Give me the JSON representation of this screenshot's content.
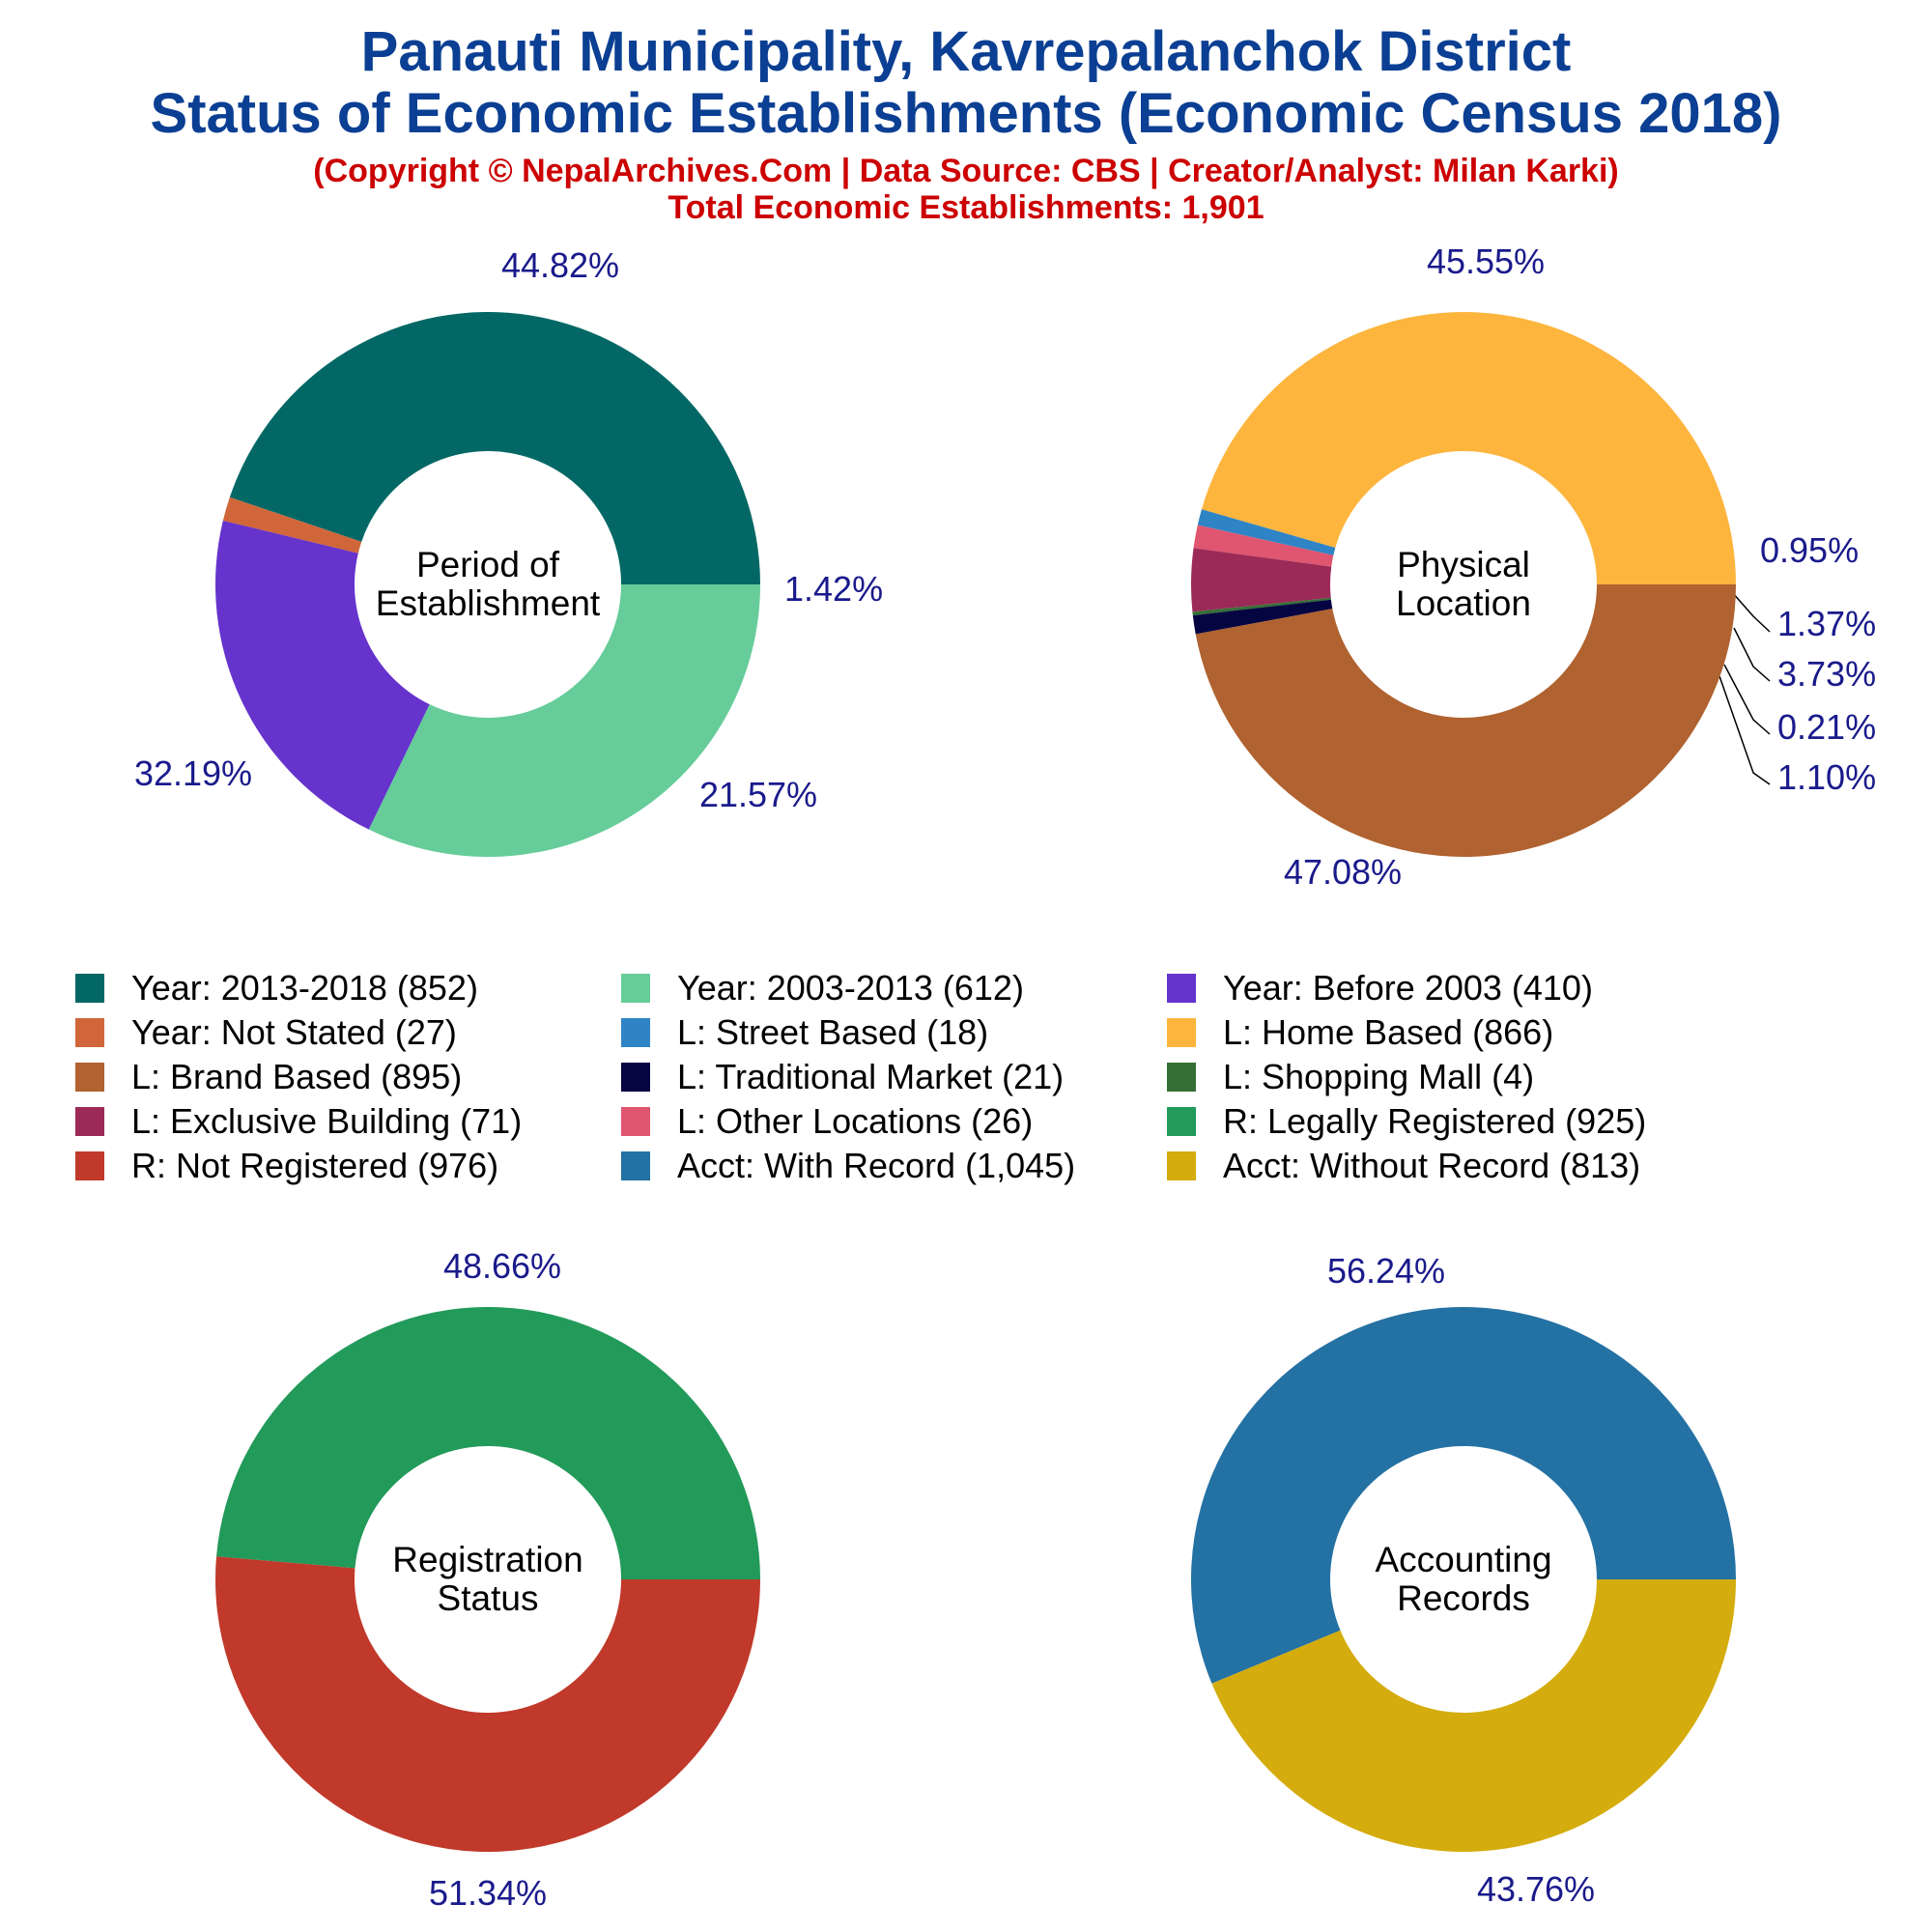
{
  "header": {
    "title_line1": "Panauti Municipality, Kavrepalanchok District",
    "title_line2": "Status of Economic Establishments (Economic Census 2018)",
    "subtitle_line1": "(Copyright © NepalArchives.Com | Data Source: CBS | Creator/Analyst: Milan Karki)",
    "subtitle_line2": "Total Economic Establishments: 1,901"
  },
  "chart_data": [
    {
      "type": "pie",
      "center_label": [
        "Period of",
        "Establishment"
      ],
      "slices": [
        {
          "label": "Year: 2013-2018",
          "value": 852,
          "percent": "44.82%",
          "color": "#036865"
        },
        {
          "label": "Year: Not Stated",
          "value": 27,
          "percent": "1.42%",
          "color": "#d1663a"
        },
        {
          "label": "Year: Before 2003",
          "value": 410,
          "percent": "21.57%",
          "color": "#6633cc"
        },
        {
          "label": "Year: 2003-2013",
          "value": 612,
          "percent": "32.19%",
          "color": "#66cc99"
        }
      ]
    },
    {
      "type": "pie",
      "center_label": [
        "Physical",
        "Location"
      ],
      "slices": [
        {
          "label": "L: Home Based",
          "value": 866,
          "percent": "45.55%",
          "color": "#fdb53e"
        },
        {
          "label": "L: Street Based",
          "value": 18,
          "percent": "0.95%",
          "color": "#2f84c6"
        },
        {
          "label": "L: Other Locations",
          "value": 26,
          "percent": "1.37%",
          "color": "#e0556f"
        },
        {
          "label": "L: Exclusive Building",
          "value": 71,
          "percent": "3.73%",
          "color": "#9b2a57"
        },
        {
          "label": "L: Shopping Mall",
          "value": 4,
          "percent": "0.21%",
          "color": "#356f35"
        },
        {
          "label": "L: Traditional Market",
          "value": 21,
          "percent": "1.10%",
          "color": "#050542"
        },
        {
          "label": "L: Brand Based",
          "value": 895,
          "percent": "47.08%",
          "color": "#b06230"
        }
      ]
    },
    {
      "type": "pie",
      "center_label": [
        "Registration",
        "Status"
      ],
      "slices": [
        {
          "label": "R: Legally Registered",
          "value": 925,
          "percent": "48.66%",
          "color": "#229a5a"
        },
        {
          "label": "R: Not Registered",
          "value": 976,
          "percent": "51.34%",
          "color": "#c0392b"
        }
      ]
    },
    {
      "type": "pie",
      "center_label": [
        "Accounting",
        "Records"
      ],
      "slices": [
        {
          "label": "Acct: With Record",
          "value": 1045,
          "percent": "56.24%",
          "color": "#2471a3"
        },
        {
          "label": "Acct: Without Record",
          "value": 813,
          "percent": "43.76%",
          "color": "#d4ac0d"
        }
      ]
    }
  ],
  "legend": [
    {
      "label": "Year: 2013-2018 (852)",
      "color": "#036865"
    },
    {
      "label": "Year: 2003-2013 (612)",
      "color": "#66cc99"
    },
    {
      "label": "Year: Before 2003 (410)",
      "color": "#6633cc"
    },
    {
      "label": "Year: Not Stated (27)",
      "color": "#d1663a"
    },
    {
      "label": "L: Street Based (18)",
      "color": "#2f84c6"
    },
    {
      "label": "L: Home Based (866)",
      "color": "#fdb53e"
    },
    {
      "label": "L: Brand Based (895)",
      "color": "#b06230"
    },
    {
      "label": "L: Traditional Market (21)",
      "color": "#050542"
    },
    {
      "label": "L: Shopping Mall (4)",
      "color": "#356f35"
    },
    {
      "label": "L: Exclusive Building (71)",
      "color": "#9b2a57"
    },
    {
      "label": "L: Other Locations (26)",
      "color": "#e0556f"
    },
    {
      "label": "R: Legally Registered (925)",
      "color": "#229a5a"
    },
    {
      "label": "R: Not Registered (976)",
      "color": "#c0392b"
    },
    {
      "label": "Acct: With Record (1,045)",
      "color": "#2471a3"
    },
    {
      "label": "Acct: Without Record (813)",
      "color": "#d4ac0d"
    }
  ]
}
